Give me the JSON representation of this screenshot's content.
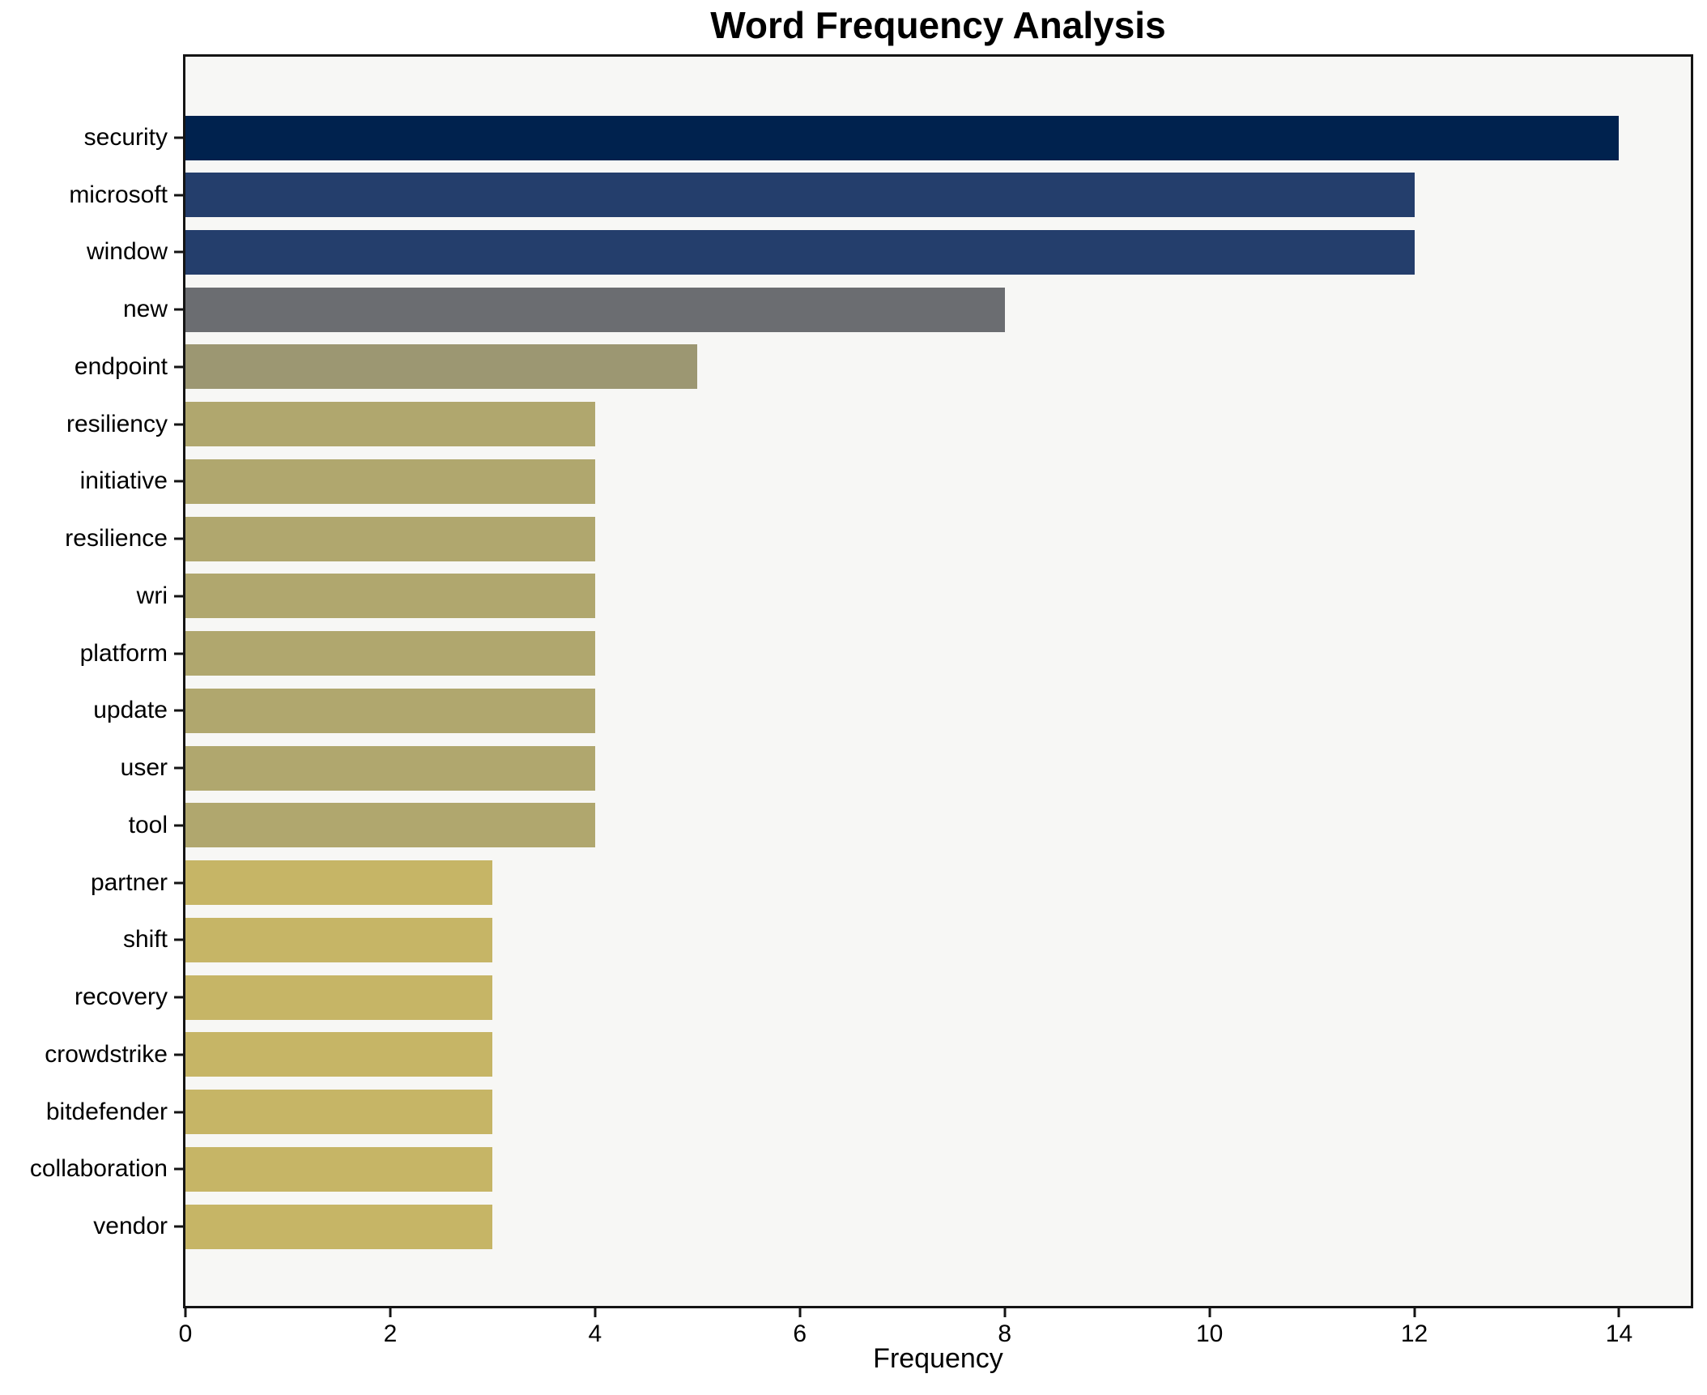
{
  "page": {
    "title": "Word Frequency Analysis"
  },
  "chart_data": {
    "type": "bar",
    "orientation": "horizontal",
    "title": "Word Frequency Analysis",
    "xlabel": "Frequency",
    "ylabel": "",
    "categories": [
      "security",
      "microsoft",
      "window",
      "new",
      "endpoint",
      "resiliency",
      "initiative",
      "resilience",
      "wri",
      "platform",
      "update",
      "user",
      "tool",
      "partner",
      "shift",
      "recovery",
      "crowdstrike",
      "bitdefender",
      "collaboration",
      "vendor"
    ],
    "values": [
      14,
      12,
      12,
      8,
      5,
      4,
      4,
      4,
      4,
      4,
      4,
      4,
      4,
      3,
      3,
      3,
      3,
      3,
      3,
      3
    ],
    "bar_colors": [
      "#00224e",
      "#243e6c",
      "#243e6c",
      "#6b6d71",
      "#9c9772",
      "#b0a76e",
      "#b0a76e",
      "#b0a76e",
      "#b0a76e",
      "#b0a76e",
      "#b0a76e",
      "#b0a76e",
      "#b0a76e",
      "#c6b566",
      "#c6b566",
      "#c6b566",
      "#c6b566",
      "#c6b566",
      "#c6b566",
      "#c6b566"
    ],
    "x_ticks": [
      "0",
      "2",
      "4",
      "6",
      "8",
      "10",
      "12",
      "14"
    ],
    "x_tick_values": [
      0,
      2,
      4,
      6,
      8,
      10,
      12,
      14
    ],
    "xlim": [
      0,
      14.7
    ],
    "grid": false,
    "legend": "none",
    "plot_bg": "#f7f7f5",
    "figure_bg": "#ffffff",
    "spine_color": "#141414",
    "text_color": "#000000"
  }
}
